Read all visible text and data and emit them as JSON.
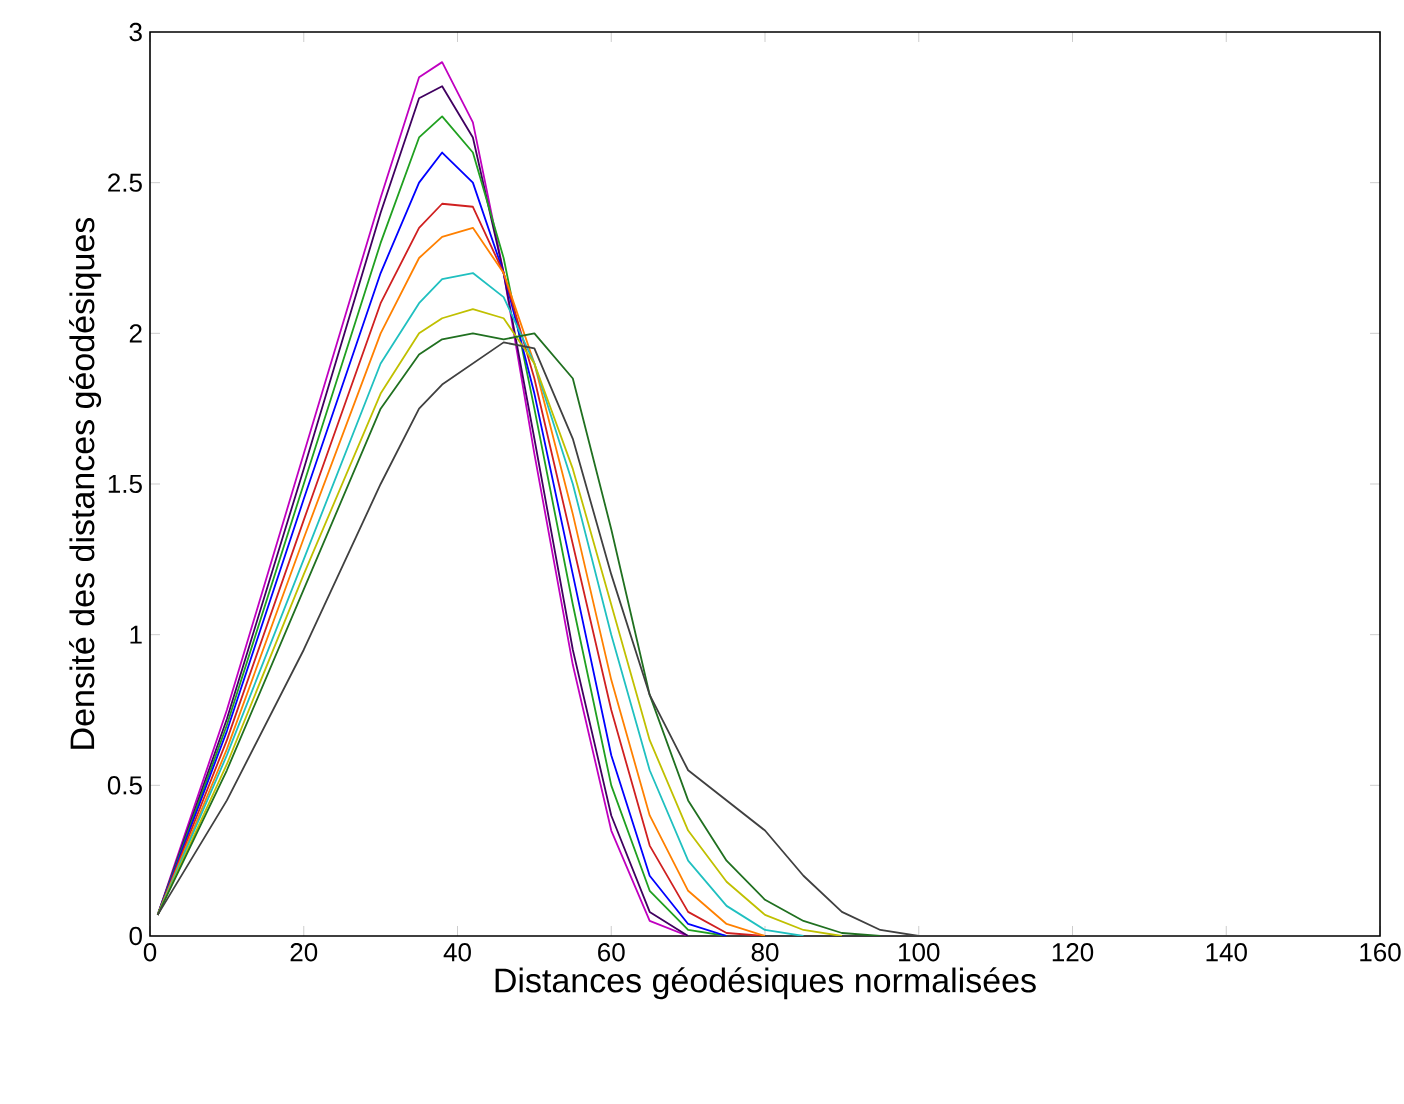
{
  "chart_data": {
    "type": "line",
    "xlabel": "Distances géodésiques normalisées",
    "ylabel": "Densité des distances géodésiques",
    "xlim": [
      0,
      160
    ],
    "ylim": [
      0,
      3
    ],
    "xticks": [
      0,
      20,
      40,
      60,
      80,
      100,
      120,
      140,
      160
    ],
    "yticks": [
      0,
      0.5,
      1,
      1.5,
      2,
      2.5,
      3
    ],
    "marker": "none",
    "line_style": "solid",
    "x": [
      1,
      10,
      20,
      30,
      35,
      38,
      42,
      46,
      50,
      55,
      60,
      65,
      70,
      75,
      80,
      85,
      90,
      95,
      100,
      150
    ],
    "series": [
      {
        "color": "#c000c0",
        "values": [
          0.07,
          0.75,
          1.6,
          2.45,
          2.85,
          2.9,
          2.7,
          2.2,
          1.6,
          0.9,
          0.35,
          0.05,
          0,
          null,
          null,
          null,
          null,
          null,
          null,
          null
        ]
      },
      {
        "color": "#400060",
        "values": [
          0.07,
          0.72,
          1.55,
          2.4,
          2.78,
          2.82,
          2.65,
          2.2,
          1.65,
          0.95,
          0.4,
          0.08,
          0,
          null,
          null,
          null,
          null,
          null,
          null,
          null
        ]
      },
      {
        "color": "#20a020",
        "values": [
          0.07,
          0.7,
          1.5,
          2.3,
          2.65,
          2.72,
          2.6,
          2.25,
          1.75,
          1.1,
          0.5,
          0.15,
          0.02,
          0,
          null,
          null,
          null,
          null,
          null,
          null
        ]
      },
      {
        "color": "#0000ff",
        "values": [
          0.07,
          0.68,
          1.45,
          2.2,
          2.5,
          2.6,
          2.5,
          2.2,
          1.8,
          1.2,
          0.6,
          0.2,
          0.04,
          0,
          null,
          null,
          null,
          null,
          null,
          null
        ]
      },
      {
        "color": "#d02020",
        "values": [
          0.07,
          0.65,
          1.38,
          2.1,
          2.35,
          2.43,
          2.42,
          2.2,
          1.85,
          1.3,
          0.75,
          0.3,
          0.08,
          0.01,
          0,
          null,
          null,
          null,
          null,
          null
        ]
      },
      {
        "color": "#ff8000",
        "values": [
          0.07,
          0.62,
          1.32,
          2.0,
          2.25,
          2.32,
          2.35,
          2.2,
          1.9,
          1.4,
          0.85,
          0.4,
          0.15,
          0.04,
          0,
          null,
          null,
          null,
          null,
          null
        ]
      },
      {
        "color": "#20c0c0",
        "values": [
          0.07,
          0.6,
          1.25,
          1.9,
          2.1,
          2.18,
          2.2,
          2.12,
          1.9,
          1.5,
          1.0,
          0.55,
          0.25,
          0.1,
          0.02,
          0,
          null,
          null,
          null,
          null
        ]
      },
      {
        "color": "#c0c000",
        "values": [
          0.07,
          0.57,
          1.2,
          1.8,
          2.0,
          2.05,
          2.08,
          2.05,
          1.9,
          1.55,
          1.1,
          0.65,
          0.35,
          0.18,
          0.07,
          0.02,
          0,
          null,
          null,
          null
        ]
      },
      {
        "color": "#207020",
        "values": [
          0.07,
          0.55,
          1.15,
          1.75,
          1.93,
          1.98,
          2.0,
          1.98,
          2.0,
          1.85,
          1.35,
          0.8,
          0.45,
          0.25,
          0.12,
          0.05,
          0.01,
          0,
          null,
          null
        ]
      },
      {
        "color": "#404040",
        "values": [
          0.07,
          0.45,
          0.95,
          1.5,
          1.75,
          1.83,
          1.9,
          1.97,
          1.95,
          1.65,
          1.2,
          0.8,
          0.55,
          0.45,
          0.35,
          0.2,
          0.08,
          0.02,
          0,
          0
        ]
      }
    ]
  }
}
